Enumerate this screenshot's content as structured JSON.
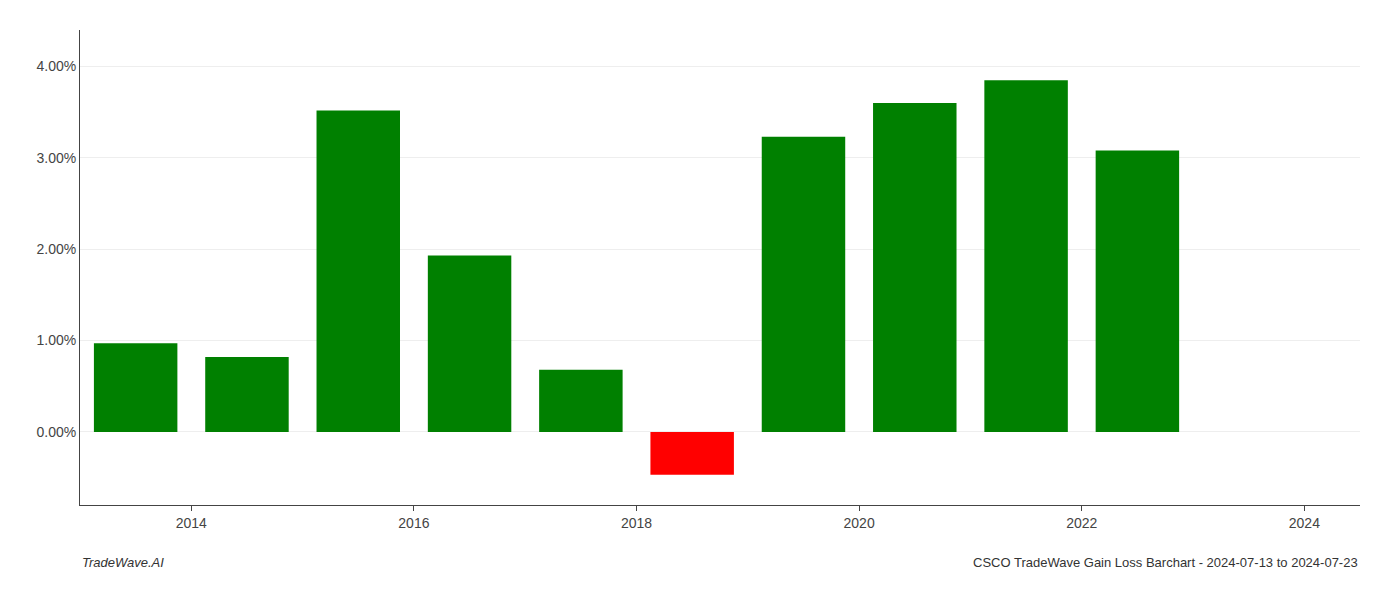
{
  "chart_data": {
    "type": "bar",
    "x": [
      2013.5,
      2014.5,
      2015.5,
      2016.5,
      2017.5,
      2018.5,
      2019.5,
      2020.5,
      2021.5,
      2022.5
    ],
    "values": [
      0.0097,
      0.0082,
      0.0352,
      0.0193,
      0.0068,
      -0.0047,
      0.0323,
      0.036,
      0.0385,
      0.0308
    ],
    "colors": [
      "#008000",
      "#008000",
      "#008000",
      "#008000",
      "#008000",
      "#ff0000",
      "#008000",
      "#008000",
      "#008000",
      "#008000"
    ],
    "xlim": [
      2013.0,
      2024.5
    ],
    "xticks": [
      2014,
      2016,
      2018,
      2020,
      2022,
      2024
    ],
    "ylim": [
      -0.008,
      0.044
    ],
    "yticks": [
      {
        "value": 0.0,
        "label": "0.00%"
      },
      {
        "value": 0.01,
        "label": "1.00%"
      },
      {
        "value": 0.02,
        "label": "2.00%"
      },
      {
        "value": 0.03,
        "label": "3.00%"
      },
      {
        "value": 0.04,
        "label": "4.00%"
      }
    ],
    "grid": true,
    "annotations": [
      "TradeWave.AI",
      "CSCO TradeWave Gain Loss Barchart - 2024-07-13 to 2024-07-23"
    ]
  }
}
